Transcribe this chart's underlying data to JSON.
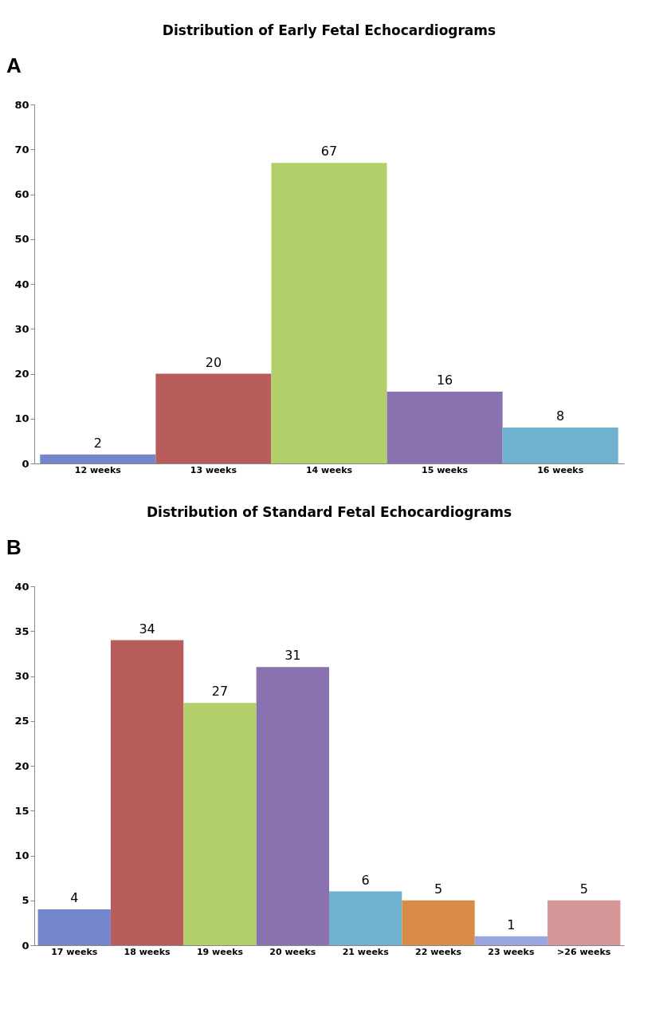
{
  "chart_data": [
    {
      "type": "bar",
      "title": "Distribution of Early Fetal Echocardiograms",
      "annotations": [
        "A"
      ],
      "categories": [
        "12 weeks",
        "13 weeks",
        "14 weeks",
        "15 weeks",
        "16 weeks"
      ],
      "values": [
        2,
        20,
        67,
        16,
        8
      ],
      "colors": [
        "#7486cc",
        "#b85c5c",
        "#b3cf6a",
        "#8a72b0",
        "#6fb2d0"
      ],
      "ylim": [
        0,
        80
      ],
      "yticks": [
        0,
        10,
        20,
        30,
        40,
        50,
        60,
        70,
        80
      ],
      "data_labels": true,
      "grid": false
    },
    {
      "type": "bar",
      "title": "Distribution of Standard Fetal Echocardiograms",
      "annotations": [
        "B"
      ],
      "categories": [
        "17 weeks",
        "18 weeks",
        "19 weeks",
        "20 weeks",
        "21 weeks",
        "22 weeks",
        "23 weeks",
        ">26 weeks"
      ],
      "values": [
        4,
        34,
        27,
        31,
        6,
        5,
        1,
        5
      ],
      "colors": [
        "#7486cc",
        "#b85c5c",
        "#b3cf6a",
        "#8a72b0",
        "#6fb2d0",
        "#d98c46",
        "#9aa6e0",
        "#d49696"
      ],
      "ylim": [
        0,
        40
      ],
      "yticks": [
        0,
        5,
        10,
        15,
        20,
        25,
        30,
        35,
        40
      ],
      "data_labels": true,
      "grid": false
    }
  ]
}
